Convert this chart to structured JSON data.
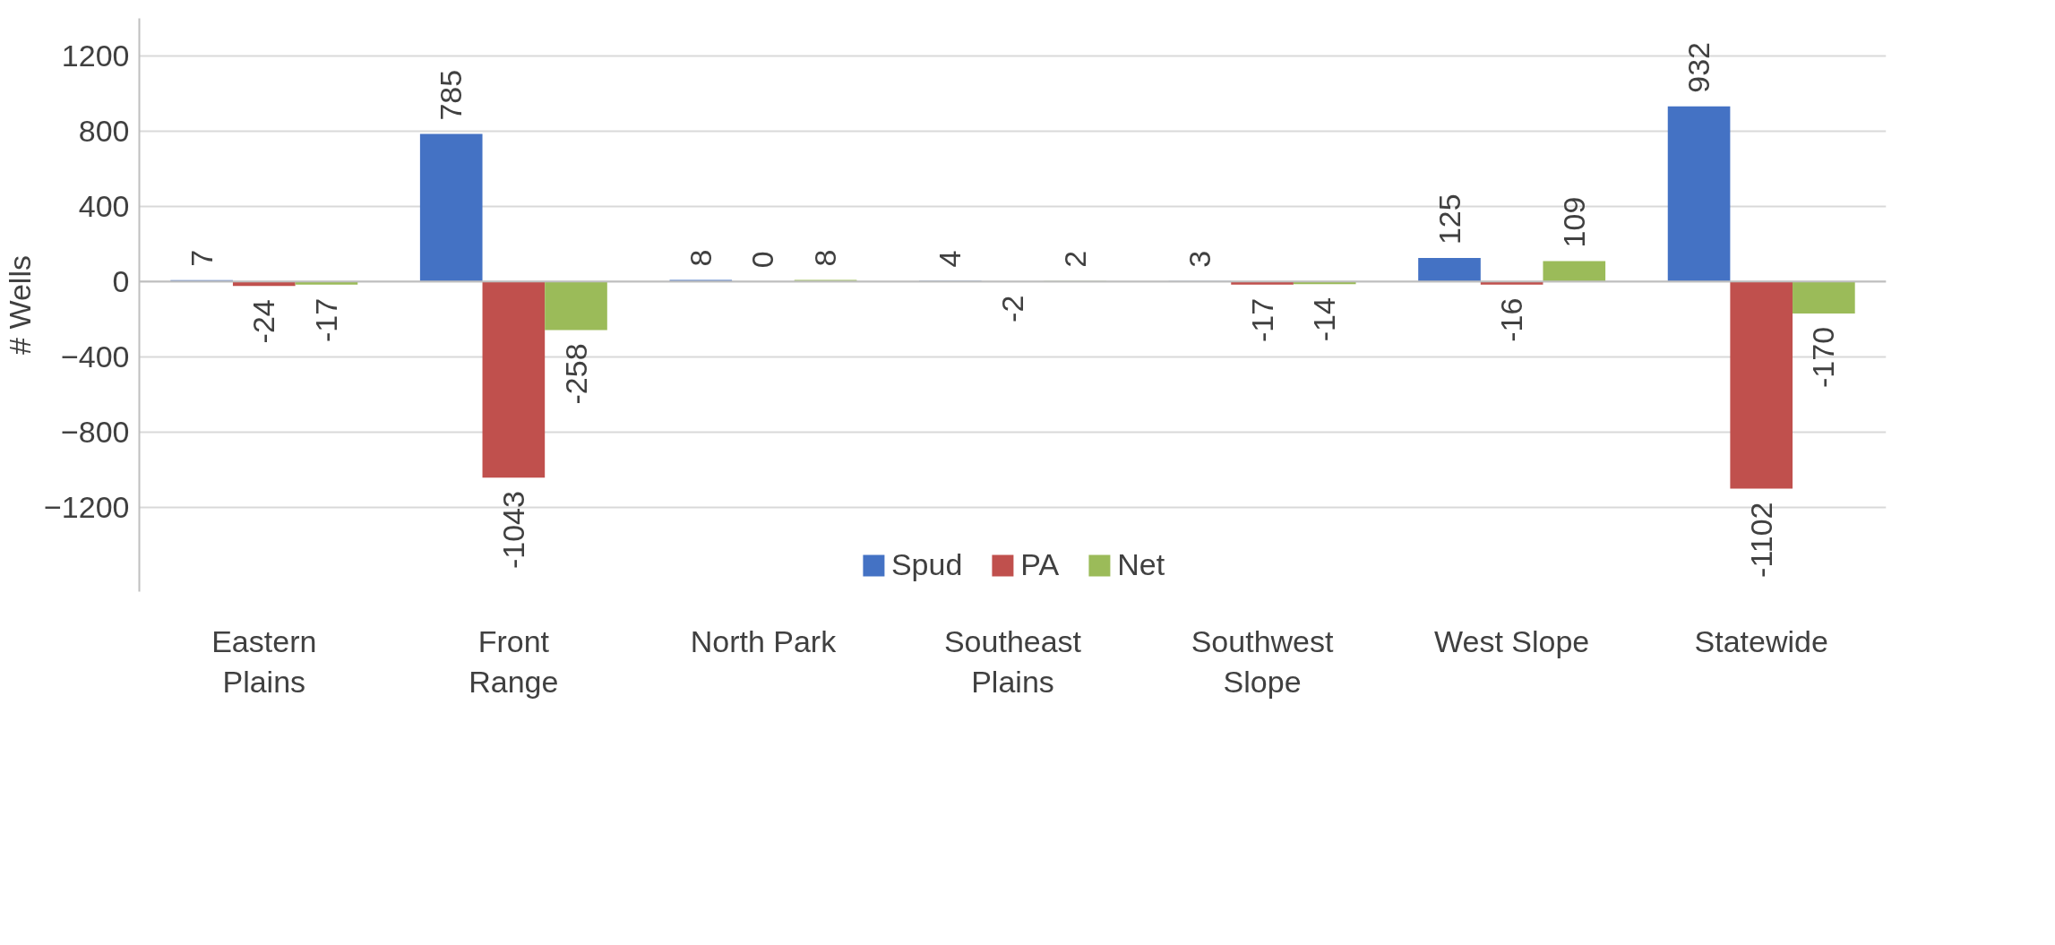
{
  "chart_data": {
    "type": "bar",
    "ylabel": "# Wells",
    "categories": [
      "Eastern\nPlains",
      "Front\nRange",
      "North Park",
      "Southeast\nPlains",
      "Southwest\nSlope",
      "West Slope",
      "Statewide"
    ],
    "series": [
      {
        "name": "Spud",
        "color": "#4472c4",
        "values": [
          7,
          785,
          8,
          4,
          3,
          125,
          932
        ]
      },
      {
        "name": "PA",
        "color": "#c0504d",
        "values": [
          -24,
          -1043,
          0,
          -2,
          -17,
          -16,
          -1102
        ]
      },
      {
        "name": "Net",
        "color": "#9bbb59",
        "values": [
          -17,
          -258,
          8,
          2,
          -14,
          109,
          -170
        ]
      }
    ],
    "ylim": [
      -1650,
      1400
    ],
    "yticks": [
      -1200,
      -800,
      -400,
      0,
      400,
      800,
      1200
    ],
    "grid": "y",
    "legend": "bottom",
    "data_labels": true
  }
}
